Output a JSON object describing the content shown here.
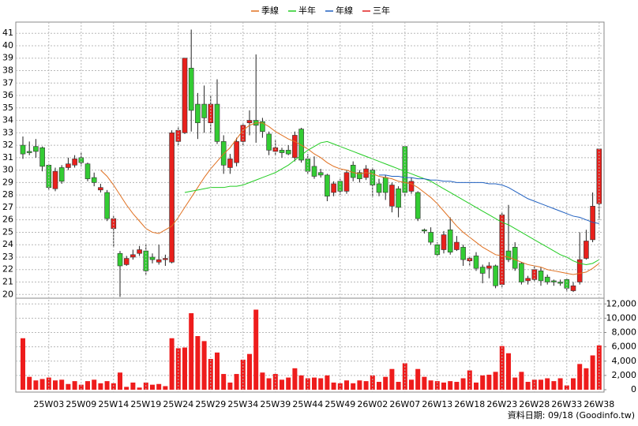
{
  "chart_data": [
    {
      "type": "candlestick",
      "open": [
        32,
        31.5,
        31.9,
        31.8,
        30.4,
        28.5,
        30.2,
        30.2,
        30.4,
        31,
        30.5,
        29.4,
        28.4,
        28.2,
        25.3,
        23.3,
        22.4,
        23,
        23.3,
        23.5,
        23,
        22.6,
        22.8,
        22.6,
        32.3,
        33,
        38.2,
        35.3,
        35.3,
        33.8,
        35.3,
        32.3,
        30.2,
        30.6,
        32.3,
        33.8,
        34,
        33.9,
        32.9,
        31.5,
        31.6,
        31.6,
        31,
        33.3,
        30.9,
        30.3,
        29.8,
        29.6,
        28.2,
        29.1,
        28.3,
        30.4,
        29.8,
        29.4,
        30,
        28.9,
        29.4,
        27.1,
        28.5,
        31.9,
        28.3,
        28.2,
        25.2,
        25,
        24,
        23.6,
        25.2,
        23.6,
        23.8,
        22.7,
        23.1,
        22.2,
        22.1,
        22.3,
        20.8,
        23.5,
        23.8,
        22.5,
        21.1,
        21.2,
        21.9,
        21.4,
        21.1,
        21,
        21.2,
        20.3,
        21,
        22.9,
        24.4,
        27.3
      ],
      "high": [
        32.7,
        32.3,
        32.5,
        31.9,
        30.5,
        30.2,
        30.4,
        31,
        31.2,
        31.4,
        30.6,
        29.8,
        28.9,
        28.4,
        26.3,
        23.5,
        23.1,
        23.6,
        23.9,
        24,
        23.3,
        24,
        23.2,
        33.2,
        33.5,
        39,
        41.3,
        36.2,
        36.8,
        36,
        37.3,
        32.8,
        31.3,
        32.6,
        33.8,
        34.8,
        39.3,
        34.2,
        33.1,
        32.4,
        31.8,
        32,
        33.1,
        33.4,
        31.3,
        31.1,
        30.1,
        29.7,
        29.1,
        29.3,
        30,
        30.7,
        30,
        30.4,
        30.2,
        29.3,
        29.6,
        29,
        28.7,
        31.9,
        29.4,
        28.3,
        25.3,
        25.4,
        24.2,
        25.1,
        26.2,
        24.7,
        24,
        23,
        23.4,
        22.4,
        22.6,
        22.4,
        26.6,
        27.2,
        24.2,
        22.6,
        21.5,
        22.3,
        22.2,
        21.6,
        21.2,
        21.2,
        21.3,
        21,
        25,
        25.2,
        28.2,
        31.7
      ],
      "low": [
        30.9,
        31.2,
        31,
        29.9,
        28.4,
        28.3,
        28.9,
        30,
        30.2,
        30.3,
        29.1,
        28.7,
        28.2,
        25.9,
        23.8,
        19.8,
        22.3,
        22.8,
        23.1,
        21.6,
        22.5,
        22.4,
        22.3,
        22.5,
        32,
        32.9,
        33.1,
        32.5,
        33,
        33,
        32.1,
        29.7,
        29.7,
        30.3,
        32,
        32.8,
        32.2,
        32.6,
        31.2,
        31.2,
        31,
        31.2,
        30.7,
        30.6,
        29.7,
        29.3,
        29.4,
        27.5,
        27.9,
        28,
        28.1,
        29.1,
        29,
        29.2,
        27.8,
        27.9,
        27.6,
        26.6,
        26.2,
        27.9,
        28.1,
        25.9,
        24.9,
        24,
        23.1,
        23.3,
        23.2,
        23.5,
        22.3,
        22.3,
        21.9,
        20.9,
        21.3,
        20.5,
        20.6,
        22.6,
        21.9,
        20.8,
        20.8,
        21,
        20.7,
        20.8,
        20.7,
        20.7,
        20.2,
        20.2,
        20.8,
        22.8,
        24.2,
        26
      ],
      "close": [
        31.3,
        31.4,
        31.5,
        30.3,
        28.6,
        29.9,
        29.1,
        30.5,
        30.9,
        30.6,
        29.3,
        29,
        28.6,
        26.1,
        26.1,
        22.3,
        22.9,
        23.2,
        23.6,
        21.9,
        22.8,
        22.8,
        22.9,
        33,
        33.2,
        39,
        34.8,
        33.8,
        34.2,
        35.3,
        32.3,
        30.4,
        30.9,
        32.3,
        33.6,
        34,
        33.6,
        33.1,
        31.6,
        31.8,
        31.4,
        31.3,
        32.8,
        30.8,
        29.9,
        29.5,
        29.6,
        27.9,
        28.9,
        28.3,
        29.8,
        29.4,
        29.3,
        30.1,
        28.8,
        28.2,
        28.2,
        28.8,
        27,
        28.2,
        29.1,
        26.1,
        25.1,
        24.2,
        23.2,
        24.8,
        23.4,
        24.2,
        22.8,
        22.9,
        22.1,
        21.7,
        22.3,
        20.7,
        26.4,
        22.8,
        22.1,
        21,
        21.3,
        22,
        21.1,
        21,
        21,
        20.9,
        20.5,
        20.7,
        22.8,
        24.3,
        27.1,
        31.7
      ],
      "up_color": "#e8201c",
      "down_color": "#33cc33",
      "series": [
        {
          "name": "季線",
          "color": "#e07020",
          "values": [
            null,
            null,
            null,
            null,
            null,
            null,
            null,
            null,
            null,
            null,
            null,
            null,
            30.0,
            29.5,
            28.8,
            28,
            27.2,
            26.5,
            25.9,
            25.3,
            25,
            24.9,
            25.2,
            25.5,
            26.2,
            27,
            27.8,
            28.6,
            29.4,
            30.1,
            30.7,
            31.3,
            31.8,
            32.5,
            33.2,
            33.6,
            33.8,
            33.8,
            33.5,
            33.1,
            32.8,
            32.5,
            32.3,
            32.0,
            31.7,
            31.3,
            31.0,
            30.6,
            30.3,
            30.1,
            30.0,
            29.8,
            29.7,
            29.8,
            29.7,
            29.5,
            29.4,
            29.3,
            29.1,
            29.0,
            28.9,
            28.6,
            28.2,
            27.8,
            27.3,
            26.7,
            26.1,
            25.5,
            25.0,
            24.6,
            24.2,
            23.8,
            23.5,
            23.2,
            23.1,
            23.0,
            22.8,
            22.6,
            22.4,
            22.3,
            22.2,
            22.0,
            21.9,
            21.8,
            21.7,
            21.6,
            21.7,
            21.8,
            22.1,
            22.5
          ]
        },
        {
          "name": "半年",
          "color": "#22cc22",
          "values": [
            null,
            null,
            null,
            null,
            null,
            null,
            null,
            null,
            null,
            null,
            null,
            null,
            null,
            null,
            null,
            null,
            null,
            null,
            null,
            null,
            null,
            null,
            null,
            null,
            null,
            28.2,
            28.3,
            28.4,
            28.5,
            28.6,
            28.6,
            28.6,
            28.7,
            28.7,
            28.8,
            29.0,
            29.2,
            29.4,
            29.6,
            29.8,
            30.1,
            30.4,
            30.8,
            31.2,
            31.6,
            31.9,
            32.2,
            32.3,
            32.1,
            31.9,
            31.7,
            31.5,
            31.3,
            31.1,
            30.9,
            30.7,
            30.5,
            30.3,
            30.1,
            29.9,
            29.7,
            29.5,
            29.3,
            29.1,
            28.8,
            28.5,
            28.2,
            27.9,
            27.6,
            27.3,
            27.0,
            26.7,
            26.4,
            26.1,
            25.8,
            25.6,
            25.3,
            25.0,
            24.7,
            24.4,
            24.1,
            23.8,
            23.5,
            23.2,
            23.0,
            22.7,
            22.5,
            22.4,
            22.5,
            22.8
          ]
        },
        {
          "name": "年線",
          "color": "#2060c0",
          "values": [
            null,
            null,
            null,
            null,
            null,
            null,
            null,
            null,
            null,
            null,
            null,
            null,
            null,
            null,
            null,
            null,
            null,
            null,
            null,
            null,
            null,
            null,
            null,
            null,
            null,
            null,
            null,
            null,
            null,
            null,
            null,
            null,
            null,
            null,
            null,
            null,
            null,
            null,
            null,
            null,
            null,
            null,
            null,
            null,
            null,
            null,
            null,
            null,
            null,
            null,
            null,
            null,
            null,
            null,
            null,
            29.6,
            29.6,
            29.5,
            29.5,
            29.4,
            29.4,
            29.3,
            29.3,
            29.2,
            29.2,
            29.1,
            29.1,
            29.0,
            29.0,
            29.0,
            29.0,
            29.0,
            28.9,
            28.9,
            28.8,
            28.6,
            28.3,
            28.0,
            27.7,
            27.5,
            27.3,
            27.1,
            26.9,
            26.7,
            26.5,
            26.3,
            26.2,
            26.0,
            25.8,
            25.7
          ]
        },
        {
          "name": "三年",
          "color": "#e02020",
          "values": [
            null,
            null,
            null,
            null,
            null,
            null,
            null,
            null,
            null,
            null,
            null,
            null,
            null,
            null,
            null,
            null,
            null,
            null,
            null,
            null,
            null,
            null,
            null,
            null,
            null,
            null,
            null,
            null,
            null,
            null,
            null,
            null,
            null,
            null,
            null,
            null,
            null,
            null,
            null,
            null,
            null,
            null,
            null,
            null,
            null,
            null,
            null,
            null,
            null,
            null,
            null,
            null,
            null,
            null,
            null,
            null,
            null,
            null,
            null,
            null,
            null,
            null,
            null,
            null,
            null,
            null,
            null,
            null,
            null,
            null,
            null,
            null,
            null,
            null,
            null,
            null,
            null,
            null,
            null,
            null,
            null,
            null,
            null,
            null,
            null,
            null,
            null,
            null,
            null,
            null
          ]
        }
      ],
      "ylim": [
        19.7,
        41.9
      ],
      "yticks": [
        20,
        21,
        22,
        23,
        24,
        25,
        26,
        27,
        28,
        29,
        30,
        31,
        32,
        33,
        34,
        35,
        36,
        37,
        38,
        39,
        40,
        41
      ],
      "grid": true,
      "legend": "top"
    },
    {
      "type": "bar",
      "categories": [
        null,
        null,
        null,
        null,
        "25W03",
        null,
        null,
        null,
        null,
        "25W09",
        null,
        null,
        null,
        null,
        "25W14",
        null,
        null,
        null,
        null,
        "25W19",
        null,
        null,
        null,
        null,
        "25W24",
        null,
        null,
        null,
        null,
        "25W29",
        null,
        null,
        null,
        null,
        "25W34",
        null,
        null,
        null,
        null,
        "25W39",
        null,
        null,
        null,
        null,
        "25W44",
        null,
        null,
        null,
        null,
        "25W49",
        null,
        null,
        null,
        null,
        "26W02",
        null,
        null,
        null,
        null,
        "26W07",
        null,
        null,
        null,
        null,
        "26W13",
        null,
        null,
        null,
        null,
        "26W18",
        null,
        null,
        null,
        null,
        "26W23",
        null,
        null,
        null,
        null,
        "26W28",
        null,
        null,
        null,
        null,
        "26W33",
        null,
        null,
        null,
        null,
        "26W38"
      ],
      "values": [
        7200,
        1800,
        1300,
        1500,
        1700,
        1300,
        1400,
        800,
        1200,
        700,
        1200,
        1400,
        900,
        1200,
        900,
        2400,
        400,
        1000,
        300,
        1000,
        700,
        800,
        500,
        7200,
        5800,
        5900,
        10700,
        7500,
        6800,
        4300,
        5200,
        2200,
        1000,
        2200,
        4200,
        5000,
        11200,
        2400,
        1600,
        2200,
        1400,
        1700,
        3000,
        2000,
        1600,
        1700,
        1600,
        2000,
        1000,
        900,
        1300,
        900,
        1300,
        1200,
        2000,
        1100,
        1800,
        2900,
        1100,
        3700,
        1400,
        2900,
        1800,
        1300,
        1200,
        1000,
        1200,
        1100,
        1600,
        2700,
        1000,
        2000,
        2100,
        2500,
        6100,
        5100,
        1700,
        2500,
        1100,
        1400,
        1400,
        1600,
        1200,
        1600,
        600,
        1600,
        3600,
        3000,
        4800,
        6200
      ],
      "color": "#ee1c1c",
      "ylim": [
        0,
        12800
      ],
      "yticks": [
        0,
        {
          "value": 2000,
          "label": "2,000"
        },
        {
          "value": 4000,
          "label": "4,000"
        },
        {
          "value": 6000,
          "label": "6,000"
        },
        {
          "value": 8000,
          "label": "8,000"
        },
        {
          "value": 10000,
          "label": "10,000"
        },
        {
          "value": 12000,
          "label": "12,000"
        }
      ],
      "grid": true,
      "annotation": "資料日期: 09/18 (Goodinfo.tw)"
    }
  ]
}
